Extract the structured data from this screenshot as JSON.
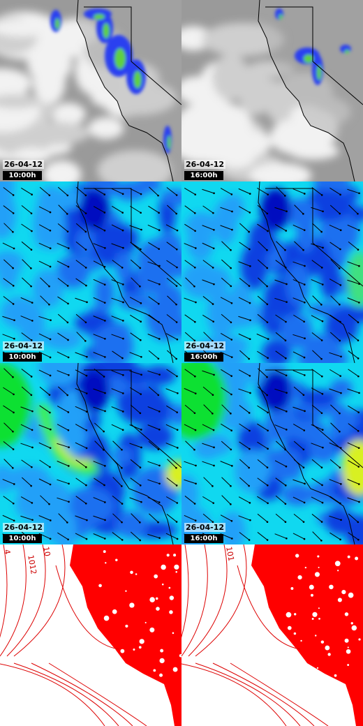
{
  "panels": [
    {
      "date": "26-04-12",
      "time": "10:00h"
    },
    {
      "date": "26-04-12",
      "time": "16:00h"
    },
    {
      "date": "26-04-12",
      "time": "10:00h"
    },
    {
      "date": "26-04-12",
      "time": "16:00h"
    },
    {
      "date": "26-04-12",
      "time": "10:00h"
    },
    {
      "date": "26-04-12",
      "time": "16:00h"
    }
  ],
  "isobars": {
    "left": [
      "4",
      "1012",
      "10"
    ],
    "right": [
      "101"
    ]
  }
}
